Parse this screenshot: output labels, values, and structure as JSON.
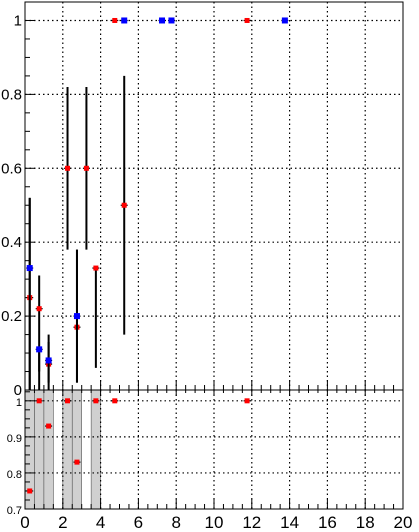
{
  "chart_data": [
    {
      "type": "scatter",
      "xlim": [
        0,
        20
      ],
      "ylim": [
        0,
        1.05
      ],
      "grid": true,
      "x_ticks": [
        0,
        2,
        4,
        6,
        8,
        10,
        12,
        14,
        16,
        18,
        20
      ],
      "y_ticks": [
        0,
        0.2,
        0.4,
        0.6,
        0.8,
        1
      ],
      "y_tick_labels": [
        "0",
        "0.2",
        "0.4",
        "0.6",
        "0.8",
        "1"
      ],
      "series": [
        {
          "color": "#ff0000",
          "points": [
            {
              "x": 0.25,
              "y": 0.25,
              "err_low": 0.25,
              "err_high": 0.27
            },
            {
              "x": 0.75,
              "y": 0.22,
              "err_low": 0.17,
              "err_high": 0.09
            },
            {
              "x": 1.25,
              "y": 0.07,
              "err_low": 0.07,
              "err_high": 0.06
            },
            {
              "x": 2.25,
              "y": 0.6,
              "err_low": 0.22,
              "err_high": 0.22
            },
            {
              "x": 2.75,
              "y": 0.17,
              "err_low": 0.15,
              "err_high": 0.21
            },
            {
              "x": 3.25,
              "y": 0.6,
              "err_low": 0.22,
              "err_high": 0.22
            },
            {
              "x": 3.75,
              "y": 0.33,
              "err_low": 0.27,
              "err_high": 0.0
            },
            {
              "x": 4.75,
              "y": 1.0,
              "err_low": 0,
              "err_high": 0
            },
            {
              "x": 5.25,
              "y": 0.5,
              "err_low": 0.35,
              "err_high": 0.35
            },
            {
              "x": 11.75,
              "y": 1.0,
              "err_low": 0,
              "err_high": 0
            }
          ]
        },
        {
          "color": "#0000ff",
          "points": [
            {
              "x": 0.25,
              "y": 0.33,
              "err_low": 0.33,
              "err_high": 0.19
            },
            {
              "x": 0.75,
              "y": 0.11,
              "err_low": 0.11,
              "err_high": 0.0
            },
            {
              "x": 1.25,
              "y": 0.08,
              "err_low": 0.06,
              "err_high": 0.07
            },
            {
              "x": 2.75,
              "y": 0.2,
              "err_low": 0.18,
              "err_high": 0.18
            },
            {
              "x": 5.25,
              "y": 1.0,
              "err_low": 0,
              "err_high": 0
            },
            {
              "x": 7.25,
              "y": 1.0,
              "err_low": 0,
              "err_high": 0
            },
            {
              "x": 7.75,
              "y": 1.0,
              "err_low": 0,
              "err_high": 0
            },
            {
              "x": 13.75,
              "y": 1.0,
              "err_low": 0,
              "err_high": 0
            }
          ]
        }
      ]
    },
    {
      "type": "scatter",
      "xlim": [
        0,
        20
      ],
      "ylim": [
        0.7,
        1.03
      ],
      "grid": true,
      "x_ticks": [
        0,
        2,
        4,
        6,
        8,
        10,
        12,
        14,
        16,
        18,
        20
      ],
      "x_tick_labels": [
        "0",
        "2",
        "4",
        "6",
        "8",
        "10",
        "12",
        "14",
        "16",
        "18",
        "20"
      ],
      "y_ticks": [
        0.7,
        0.8,
        0.9,
        1
      ],
      "y_tick_labels": [
        "0.7",
        "0.8",
        "0.9",
        "1"
      ],
      "shaded_bins": [
        {
          "x0": 0.0,
          "x1": 0.5
        },
        {
          "x0": 0.5,
          "x1": 1.0
        },
        {
          "x0": 1.0,
          "x1": 1.5
        },
        {
          "x0": 2.0,
          "x1": 2.5
        },
        {
          "x0": 2.5,
          "x1": 3.0
        },
        {
          "x0": 3.5,
          "x1": 4.0
        }
      ],
      "series": [
        {
          "color": "#ff0000",
          "points": [
            {
              "x": 0.25,
              "y": 0.75
            },
            {
              "x": 0.75,
              "y": 1.0
            },
            {
              "x": 1.25,
              "y": 0.93
            },
            {
              "x": 2.25,
              "y": 1.0
            },
            {
              "x": 2.75,
              "y": 0.83
            },
            {
              "x": 3.75,
              "y": 1.0
            },
            {
              "x": 4.75,
              "y": 1.0
            },
            {
              "x": 11.75,
              "y": 1.0
            }
          ]
        }
      ]
    }
  ]
}
